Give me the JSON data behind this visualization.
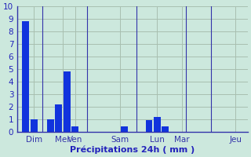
{
  "bar_data": [
    {
      "x": 1,
      "height": 8.8
    },
    {
      "x": 2,
      "height": 1.0
    },
    {
      "x": 4,
      "height": 1.0
    },
    {
      "x": 5,
      "height": 2.2
    },
    {
      "x": 6,
      "height": 4.8
    },
    {
      "x": 7,
      "height": 0.4
    },
    {
      "x": 13,
      "height": 0.4
    },
    {
      "x": 16,
      "height": 0.9
    },
    {
      "x": 17,
      "height": 1.2
    },
    {
      "x": 18,
      "height": 0.4
    }
  ],
  "bar_color": "#1133dd",
  "bar_width": 0.85,
  "xlabel": "Précipitations 24h ( mm )",
  "ylim": [
    0,
    10
  ],
  "yticks": [
    0,
    1,
    2,
    3,
    4,
    5,
    6,
    7,
    8,
    9,
    10
  ],
  "xlim": [
    0,
    28
  ],
  "day_tick_positions": [
    2.0,
    5.5,
    7.0,
    12.5,
    17.0,
    20.0,
    26.5
  ],
  "day_labels": [
    "Dim",
    "Mer",
    "Ven",
    "Sam",
    "Lun",
    "Mar",
    "Jeu"
  ],
  "vline_positions": [
    3.0,
    8.5,
    14.5,
    20.5,
    23.5
  ],
  "grid_color": "#a8bfb0",
  "bg_color": "#cce8dd",
  "text_color": "#2222bb",
  "xlabel_fontsize": 8,
  "tick_fontsize": 7.5,
  "axis_color": "#3333aa"
}
